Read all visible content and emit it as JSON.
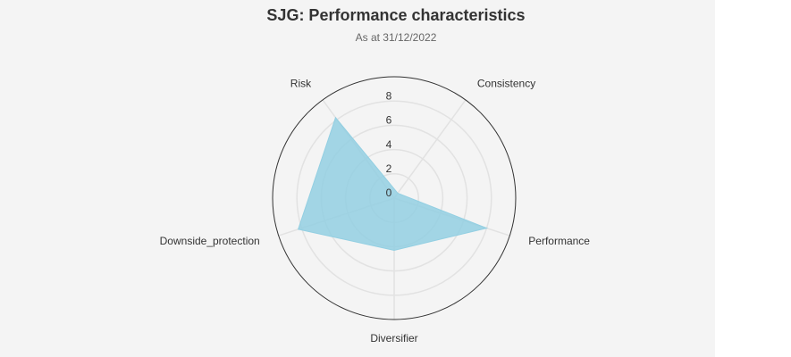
{
  "chart_data": {
    "type": "radar",
    "title": "SJG: Performance characteristics",
    "subtitle": "As at 31/12/2022",
    "categories": [
      "Risk",
      "Consistency",
      "Performance",
      "Diversifier",
      "Downside_protection"
    ],
    "values": [
      8.2,
      0.5,
      8.0,
      4.3,
      8.3
    ],
    "color": "#93cfe2",
    "ylim": [
      0,
      10
    ],
    "yticks": [
      0,
      2,
      4,
      6,
      8
    ],
    "grid": true
  }
}
